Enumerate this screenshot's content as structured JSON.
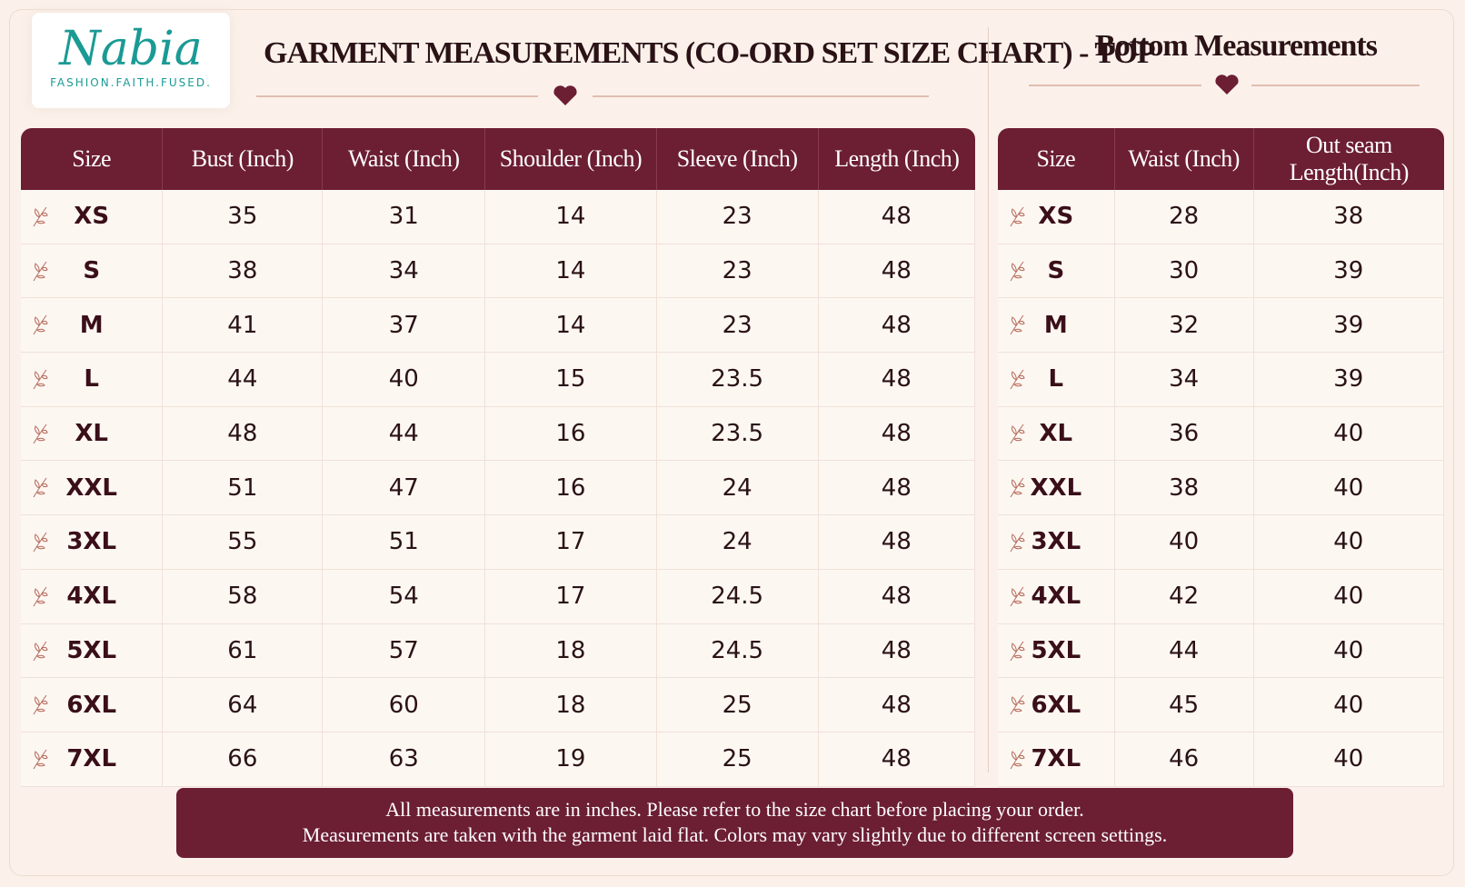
{
  "logo": {
    "name": "Nabia",
    "tagline": "FASHION.FAITH.FUSED."
  },
  "top_table": {
    "title": "GARMENT MEASUREMENTS (CO-ORD SET SIZE CHART) - TOP",
    "columns": [
      "Size",
      "Bust (Inch)",
      "Waist (Inch)",
      "Shoulder (Inch)",
      "Sleeve (Inch)",
      "Length (Inch)"
    ],
    "rows": [
      [
        "XS",
        35,
        31,
        14,
        23,
        48
      ],
      [
        "S",
        38,
        34,
        14,
        23,
        48
      ],
      [
        "M",
        41,
        37,
        14,
        23,
        48
      ],
      [
        "L",
        44,
        40,
        15,
        23.5,
        48
      ],
      [
        "XL",
        48,
        44,
        16,
        23.5,
        48
      ],
      [
        "XXL",
        51,
        47,
        16,
        24,
        48
      ],
      [
        "3XL",
        55,
        51,
        17,
        24,
        48
      ],
      [
        "4XL",
        58,
        54,
        17,
        24.5,
        48
      ],
      [
        "5XL",
        61,
        57,
        18,
        24.5,
        48
      ],
      [
        "6XL",
        64,
        60,
        18,
        25,
        48
      ],
      [
        "7XL",
        66,
        63,
        19,
        25,
        48
      ]
    ]
  },
  "bottom_table": {
    "title": "Bottom Measurements",
    "columns": [
      "Size",
      "Waist (Inch)",
      "Out seam Length(Inch)"
    ],
    "rows": [
      [
        "XS",
        28,
        38
      ],
      [
        "S",
        30,
        39
      ],
      [
        "M",
        32,
        39
      ],
      [
        "L",
        34,
        39
      ],
      [
        "XL",
        36,
        40
      ],
      [
        "XXL",
        38,
        40
      ],
      [
        "3XL",
        40,
        40
      ],
      [
        "4XL",
        42,
        40
      ],
      [
        "5XL",
        44,
        40
      ],
      [
        "6XL",
        45,
        40
      ],
      [
        "7XL",
        46,
        40
      ]
    ]
  },
  "footer": {
    "lines": [
      "All measurements are in inches. Please refer to the size chart before placing your order.",
      "Measurements are taken with the garment laid flat. Colors may vary slightly due to different screen settings."
    ]
  }
}
